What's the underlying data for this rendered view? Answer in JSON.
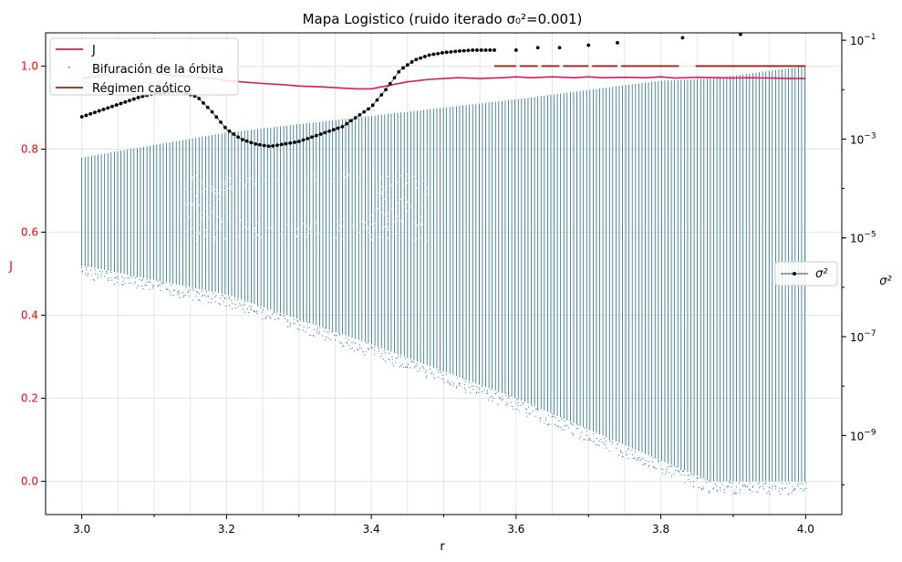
{
  "chart_data": {
    "type": "line",
    "title": "Mapa Logistico (ruido iterado σ₀²=0.001)",
    "xlabel": "r",
    "ylabel_left": "J",
    "ylabel_right": "σ²",
    "xlim": [
      2.95,
      4.05
    ],
    "ylim_left": [
      -0.08,
      1.08
    ],
    "ylim_right_log10": [
      -10.6,
      -0.85
    ],
    "grid": true,
    "x_ticks": [
      "3.0",
      "3.2",
      "3.4",
      "3.6",
      "3.8",
      "4.0"
    ],
    "x_tick_values": [
      3.0,
      3.2,
      3.4,
      3.6,
      3.8,
      4.0
    ],
    "y_left_ticks": [
      "0.0",
      "0.2",
      "0.4",
      "0.6",
      "0.8",
      "1.0"
    ],
    "y_left_tick_values": [
      0.0,
      0.2,
      0.4,
      0.6,
      0.8,
      1.0
    ],
    "y_right_ticks": [
      {
        "base": "10",
        "exp": "−9",
        "value": -9
      },
      {
        "base": "10",
        "exp": "−7",
        "value": -7
      },
      {
        "base": "10",
        "exp": "−5",
        "value": -5
      },
      {
        "base": "10",
        "exp": "−3",
        "value": -3
      },
      {
        "base": "10",
        "exp": "−1",
        "value": -1
      }
    ],
    "legend_main": {
      "placement": "upper-left",
      "entries": [
        "J",
        "Bifuración de la órbita",
        "Régimen caótico"
      ]
    },
    "legend_right": {
      "placement": "center-right",
      "entries": [
        "σ²"
      ]
    },
    "colors": {
      "J": "#e0185c",
      "bifurcation": "#1f6e8c",
      "chaotic": "#a51c1c",
      "sigma": "#000000",
      "left_axis_text": "#ff0000"
    },
    "series": [
      {
        "name": "J",
        "axis": "left",
        "x": [
          3.0,
          3.02,
          3.05,
          3.08,
          3.1,
          3.12,
          3.15,
          3.18,
          3.2,
          3.22,
          3.25,
          3.28,
          3.3,
          3.33,
          3.35,
          3.38,
          3.4,
          3.42,
          3.45,
          3.48,
          3.5,
          3.52,
          3.55,
          3.58,
          3.6,
          3.62,
          3.65,
          3.68,
          3.7,
          3.72,
          3.75,
          3.78,
          3.8,
          3.82,
          3.85,
          3.88,
          3.9,
          3.92,
          3.95,
          3.98,
          4.0
        ],
        "values": [
          0.97,
          0.975,
          0.985,
          0.985,
          0.982,
          0.978,
          0.975,
          0.97,
          0.965,
          0.962,
          0.958,
          0.955,
          0.952,
          0.95,
          0.948,
          0.945,
          0.945,
          0.952,
          0.962,
          0.968,
          0.97,
          0.972,
          0.97,
          0.972,
          0.974,
          0.972,
          0.974,
          0.972,
          0.974,
          0.972,
          0.973,
          0.972,
          0.974,
          0.971,
          0.973,
          0.972,
          0.971,
          0.972,
          0.971,
          0.97,
          0.97
        ]
      },
      {
        "name": "σ²",
        "axis": "right_log10",
        "x": [
          3.0,
          3.02,
          3.04,
          3.06,
          3.08,
          3.1,
          3.12,
          3.14,
          3.16,
          3.18,
          3.2,
          3.22,
          3.24,
          3.26,
          3.28,
          3.3,
          3.32,
          3.34,
          3.36,
          3.38,
          3.4,
          3.42,
          3.44,
          3.46,
          3.48,
          3.5,
          3.52,
          3.54,
          3.56,
          3.57
        ],
        "values": [
          -2.55,
          -2.45,
          -2.35,
          -2.25,
          -2.15,
          -2.08,
          -2.05,
          -2.05,
          -2.15,
          -2.45,
          -2.8,
          -3.0,
          -3.1,
          -3.15,
          -3.1,
          -3.05,
          -2.95,
          -2.85,
          -2.75,
          -2.55,
          -2.35,
          -2.0,
          -1.6,
          -1.4,
          -1.3,
          -1.25,
          -1.22,
          -1.2,
          -1.2,
          -1.2
        ]
      }
    ],
    "sigma_scatter_points": [
      {
        "x": 3.6,
        "y": -1.2
      },
      {
        "x": 3.63,
        "y": -1.15
      },
      {
        "x": 3.66,
        "y": -1.15
      },
      {
        "x": 3.7,
        "y": -1.1
      },
      {
        "x": 3.74,
        "y": -1.05
      },
      {
        "x": 3.83,
        "y": -0.95
      },
      {
        "x": 3.91,
        "y": -0.88
      }
    ],
    "chaotic_segments": [
      [
        3.57,
        3.6
      ],
      [
        3.605,
        3.63
      ],
      [
        3.635,
        3.66
      ],
      [
        3.665,
        3.7
      ],
      [
        3.705,
        3.74
      ],
      [
        3.745,
        3.825
      ],
      [
        3.848,
        4.0
      ]
    ],
    "chaotic_level": 1.0,
    "bifurcation_envelope": {
      "x": [
        3.0,
        3.2,
        3.4,
        3.6,
        3.8,
        3.87,
        4.0
      ],
      "upper": [
        0.78,
        0.84,
        0.88,
        0.92,
        0.965,
        0.97,
        1.0
      ],
      "lower": [
        0.52,
        0.45,
        0.33,
        0.2,
        0.05,
        0.0,
        0.0
      ]
    }
  }
}
